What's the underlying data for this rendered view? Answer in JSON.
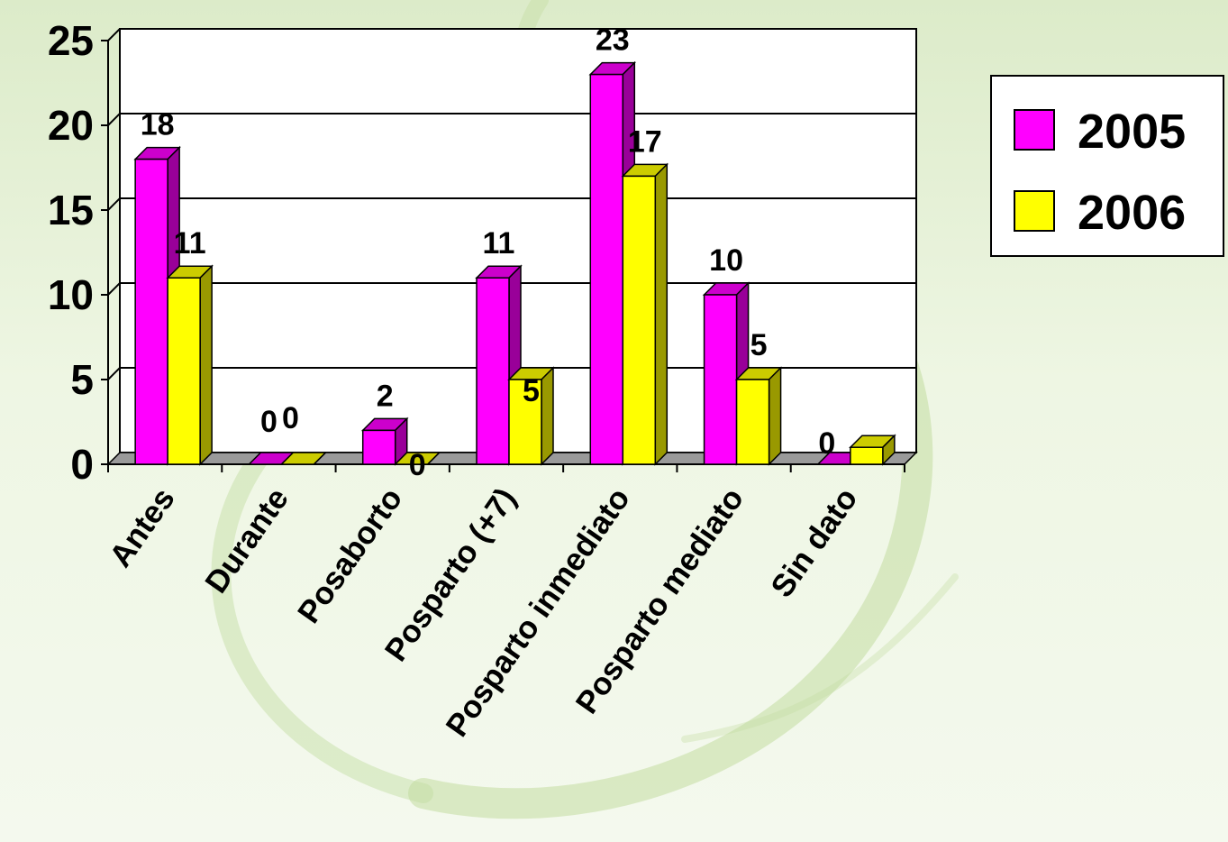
{
  "chart_data": {
    "type": "bar",
    "categories": [
      "Antes",
      "Durante",
      "Posaborto",
      "Posparto (+7)",
      "Posparto inmediato",
      "Posparto mediato",
      "Sin dato"
    ],
    "series": [
      {
        "name": "2005",
        "values": [
          18,
          0,
          2,
          11,
          23,
          10,
          0
        ],
        "color": "#ff00ff",
        "side": "#990099",
        "top": "#cc00cc"
      },
      {
        "name": "2006",
        "values": [
          11,
          0,
          0,
          5,
          17,
          5,
          1
        ],
        "color": "#ffff00",
        "side": "#999900",
        "top": "#cccc00"
      }
    ],
    "data_labels": [
      [
        "18",
        "0",
        "2",
        "11",
        "23",
        "10",
        "0"
      ],
      [
        "11",
        "0",
        "0",
        "5",
        "17",
        "5",
        ""
      ]
    ],
    "y_ticks": [
      "0",
      "5",
      "10",
      "15",
      "20",
      "25"
    ],
    "ylim": [
      0,
      25
    ],
    "grid": true,
    "legend_position": "right"
  }
}
